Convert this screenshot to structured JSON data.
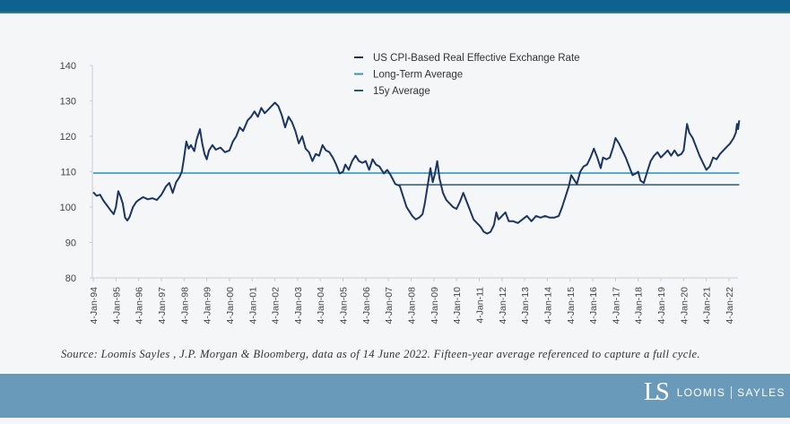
{
  "header": {
    "bar_color": "#0f6290"
  },
  "footer": {
    "source_text": "Source: Loomis Sayles , J.P. Morgan & Bloomberg, data as of 14 June 2022. Fifteen-year average referenced to capture a full cycle.",
    "logo_mark": "LS",
    "logo_left": "LOOMIS",
    "logo_right": "SAYLES"
  },
  "chart_data": {
    "type": "line",
    "title": "",
    "xlabel": "",
    "ylabel": "",
    "ylim": [
      80,
      140
    ],
    "yticks": [
      80,
      90,
      100,
      110,
      120,
      130,
      140
    ],
    "x_start_year": 1994,
    "x_end_year": 2022.45,
    "xticks": [
      "4-Jan-94",
      "4-Jan-95",
      "4-Jan-96",
      "4-Jan-97",
      "4-Jan-98",
      "4-Jan-99",
      "4-Jan-00",
      "4-Jan-01",
      "4-Jan-02",
      "4-Jan-03",
      "4-Jan-04",
      "4-Jan-05",
      "4-Jan-06",
      "4-Jan-07",
      "4-Jan-08",
      "4-Jan-09",
      "4-Jan-10",
      "4-Jan-11",
      "4-Jan-12",
      "4-Jan-13",
      "4-Jan-14",
      "4-Jan-15",
      "4-Jan-16",
      "4-Jan-17",
      "4-Jan-18",
      "4-Jan-19",
      "4-Jan-20",
      "4-Jan-21",
      "4-Jan-22"
    ],
    "grid": false,
    "legend": "top-center",
    "series": [
      {
        "name": "US CPI-Based Real Effective Exchange Rate",
        "color": "#1c3560",
        "points": [
          [
            1994.0,
            104.2
          ],
          [
            1994.15,
            103.2
          ],
          [
            1994.3,
            103.5
          ],
          [
            1994.45,
            101.8
          ],
          [
            1994.6,
            100.5
          ],
          [
            1994.75,
            99.2
          ],
          [
            1994.9,
            98.0
          ],
          [
            1995.0,
            100.0
          ],
          [
            1995.1,
            104.5
          ],
          [
            1995.2,
            103.0
          ],
          [
            1995.3,
            101.0
          ],
          [
            1995.4,
            97.0
          ],
          [
            1995.5,
            96.2
          ],
          [
            1995.6,
            97.2
          ],
          [
            1995.75,
            100.0
          ],
          [
            1995.9,
            101.5
          ],
          [
            1996.0,
            102.0
          ],
          [
            1996.2,
            102.8
          ],
          [
            1996.4,
            102.2
          ],
          [
            1996.6,
            102.5
          ],
          [
            1996.8,
            102.0
          ],
          [
            1997.0,
            103.5
          ],
          [
            1997.2,
            105.8
          ],
          [
            1997.35,
            106.8
          ],
          [
            1997.5,
            104.0
          ],
          [
            1997.65,
            107.0
          ],
          [
            1997.8,
            108.5
          ],
          [
            1997.9,
            110.0
          ],
          [
            1998.0,
            114.0
          ],
          [
            1998.1,
            118.5
          ],
          [
            1998.2,
            116.5
          ],
          [
            1998.3,
            117.5
          ],
          [
            1998.45,
            115.8
          ],
          [
            1998.55,
            119.0
          ],
          [
            1998.7,
            122.0
          ],
          [
            1998.8,
            118.0
          ],
          [
            1998.9,
            115.0
          ],
          [
            1999.0,
            113.5
          ],
          [
            1999.1,
            116.0
          ],
          [
            1999.25,
            117.5
          ],
          [
            1999.4,
            116.2
          ],
          [
            1999.6,
            116.8
          ],
          [
            1999.8,
            115.5
          ],
          [
            2000.0,
            116.0
          ],
          [
            2000.15,
            118.5
          ],
          [
            2000.3,
            120.0
          ],
          [
            2000.45,
            122.5
          ],
          [
            2000.6,
            121.5
          ],
          [
            2000.8,
            124.5
          ],
          [
            2000.95,
            125.5
          ],
          [
            2001.1,
            127.0
          ],
          [
            2001.25,
            125.5
          ],
          [
            2001.4,
            128.0
          ],
          [
            2001.55,
            126.5
          ],
          [
            2001.7,
            127.5
          ],
          [
            2001.85,
            128.5
          ],
          [
            2002.0,
            129.5
          ],
          [
            2002.15,
            128.5
          ],
          [
            2002.3,
            126.0
          ],
          [
            2002.45,
            122.5
          ],
          [
            2002.6,
            125.5
          ],
          [
            2002.75,
            124.0
          ],
          [
            2002.9,
            121.5
          ],
          [
            2003.05,
            118.0
          ],
          [
            2003.2,
            120.0
          ],
          [
            2003.35,
            116.5
          ],
          [
            2003.5,
            115.5
          ],
          [
            2003.65,
            113.0
          ],
          [
            2003.8,
            115.0
          ],
          [
            2003.95,
            114.5
          ],
          [
            2004.1,
            117.5
          ],
          [
            2004.25,
            116.0
          ],
          [
            2004.4,
            115.5
          ],
          [
            2004.55,
            114.0
          ],
          [
            2004.7,
            112.0
          ],
          [
            2004.85,
            109.5
          ],
          [
            2005.0,
            110.0
          ],
          [
            2005.1,
            112.0
          ],
          [
            2005.25,
            110.5
          ],
          [
            2005.4,
            113.0
          ],
          [
            2005.55,
            114.5
          ],
          [
            2005.7,
            113.0
          ],
          [
            2005.85,
            112.5
          ],
          [
            2006.0,
            113.0
          ],
          [
            2006.15,
            110.5
          ],
          [
            2006.3,
            113.5
          ],
          [
            2006.45,
            112.0
          ],
          [
            2006.6,
            111.5
          ],
          [
            2006.8,
            109.5
          ],
          [
            2006.95,
            110.5
          ],
          [
            2007.1,
            109.0
          ],
          [
            2007.3,
            106.5
          ],
          [
            2007.5,
            106.0
          ],
          [
            2007.65,
            103.0
          ],
          [
            2007.8,
            100.0
          ],
          [
            2007.95,
            98.5
          ],
          [
            2008.05,
            97.5
          ],
          [
            2008.2,
            96.5
          ],
          [
            2008.35,
            97.0
          ],
          [
            2008.5,
            98.0
          ],
          [
            2008.6,
            101.0
          ],
          [
            2008.75,
            107.0
          ],
          [
            2008.85,
            111.0
          ],
          [
            2008.95,
            107.0
          ],
          [
            2009.05,
            109.5
          ],
          [
            2009.15,
            113.0
          ],
          [
            2009.25,
            108.0
          ],
          [
            2009.4,
            104.0
          ],
          [
            2009.55,
            102.0
          ],
          [
            2009.7,
            101.0
          ],
          [
            2009.85,
            100.0
          ],
          [
            2010.0,
            99.5
          ],
          [
            2010.15,
            101.5
          ],
          [
            2010.3,
            104.0
          ],
          [
            2010.45,
            101.5
          ],
          [
            2010.6,
            99.0
          ],
          [
            2010.75,
            96.5
          ],
          [
            2010.9,
            95.5
          ],
          [
            2011.05,
            94.5
          ],
          [
            2011.2,
            93.0
          ],
          [
            2011.35,
            92.5
          ],
          [
            2011.5,
            93.0
          ],
          [
            2011.65,
            95.0
          ],
          [
            2011.75,
            98.5
          ],
          [
            2011.85,
            96.5
          ],
          [
            2012.0,
            97.5
          ],
          [
            2012.15,
            98.5
          ],
          [
            2012.3,
            96.0
          ],
          [
            2012.5,
            96.0
          ],
          [
            2012.7,
            95.5
          ],
          [
            2012.9,
            96.5
          ],
          [
            2013.1,
            97.5
          ],
          [
            2013.3,
            96.0
          ],
          [
            2013.5,
            97.5
          ],
          [
            2013.7,
            97.0
          ],
          [
            2013.9,
            97.5
          ],
          [
            2014.1,
            97.0
          ],
          [
            2014.3,
            97.0
          ],
          [
            2014.5,
            97.5
          ],
          [
            2014.65,
            100.0
          ],
          [
            2014.8,
            103.0
          ],
          [
            2014.95,
            106.0
          ],
          [
            2015.05,
            109.0
          ],
          [
            2015.15,
            108.0
          ],
          [
            2015.3,
            106.5
          ],
          [
            2015.45,
            110.0
          ],
          [
            2015.6,
            111.5
          ],
          [
            2015.75,
            112.0
          ],
          [
            2015.9,
            114.0
          ],
          [
            2016.05,
            116.5
          ],
          [
            2016.2,
            114.0
          ],
          [
            2016.35,
            111.0
          ],
          [
            2016.45,
            114.0
          ],
          [
            2016.6,
            113.5
          ],
          [
            2016.75,
            114.0
          ],
          [
            2016.9,
            117.0
          ],
          [
            2017.0,
            119.5
          ],
          [
            2017.15,
            118.0
          ],
          [
            2017.3,
            116.0
          ],
          [
            2017.45,
            114.0
          ],
          [
            2017.6,
            111.5
          ],
          [
            2017.75,
            109.0
          ],
          [
            2017.9,
            109.5
          ],
          [
            2018.0,
            110.0
          ],
          [
            2018.1,
            107.5
          ],
          [
            2018.25,
            106.8
          ],
          [
            2018.4,
            110.0
          ],
          [
            2018.55,
            113.0
          ],
          [
            2018.7,
            114.5
          ],
          [
            2018.85,
            115.5
          ],
          [
            2019.0,
            114.0
          ],
          [
            2019.15,
            115.0
          ],
          [
            2019.3,
            116.0
          ],
          [
            2019.45,
            114.5
          ],
          [
            2019.6,
            116.0
          ],
          [
            2019.75,
            114.5
          ],
          [
            2019.9,
            115.0
          ],
          [
            2020.0,
            116.0
          ],
          [
            2020.15,
            123.5
          ],
          [
            2020.25,
            121.0
          ],
          [
            2020.4,
            119.5
          ],
          [
            2020.55,
            117.0
          ],
          [
            2020.7,
            114.5
          ],
          [
            2020.85,
            112.5
          ],
          [
            2021.0,
            110.5
          ],
          [
            2021.15,
            111.5
          ],
          [
            2021.3,
            114.0
          ],
          [
            2021.45,
            113.5
          ],
          [
            2021.6,
            115.0
          ],
          [
            2021.75,
            116.0
          ],
          [
            2021.9,
            117.0
          ],
          [
            2022.05,
            118.0
          ],
          [
            2022.2,
            119.5
          ],
          [
            2022.3,
            121.0
          ],
          [
            2022.35,
            123.5
          ],
          [
            2022.4,
            122.0
          ],
          [
            2022.45,
            124.5
          ]
        ]
      },
      {
        "name": "Long-Term Average",
        "color": "#3b95b5",
        "value": 109.6,
        "from_year": 1994.0,
        "to_year": 2022.45
      },
      {
        "name": "15y Average",
        "color": "#24597a",
        "value": 106.3,
        "from_year": 2007.45,
        "to_year": 2022.45
      }
    ]
  }
}
